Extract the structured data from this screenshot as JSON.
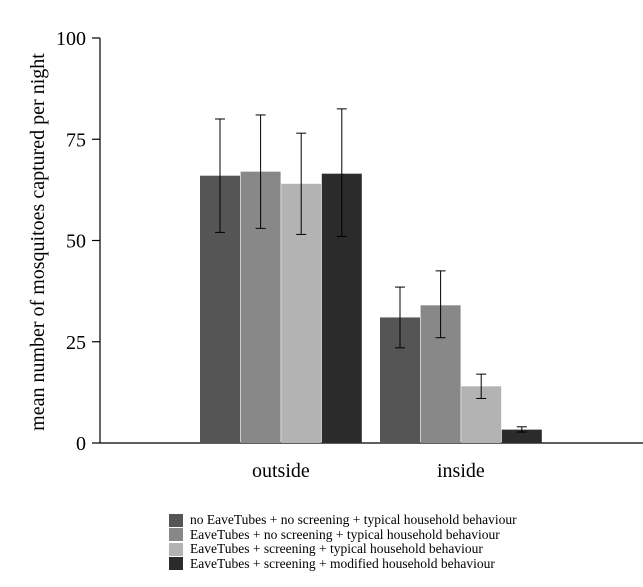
{
  "chart_data": {
    "type": "bar",
    "title": "",
    "xlabel": "",
    "ylabel": "mean number of mosquitoes captured per night",
    "ylim": [
      0,
      100
    ],
    "yticks": [
      "0",
      "25",
      "50",
      "75",
      "100"
    ],
    "categories": [
      "outside",
      "inside"
    ],
    "grid": false,
    "legend_position": "bottom",
    "series": [
      {
        "name": "no EaveTubes + no screening + typical household behaviour",
        "color": "#555555",
        "values": [
          66,
          31
        ],
        "err_low": [
          52,
          23.5
        ],
        "err_high": [
          80,
          38.5
        ]
      },
      {
        "name": "EaveTubes + no screening + typical household behaviour",
        "color": "#888888",
        "values": [
          67,
          34
        ],
        "err_low": [
          53,
          26
        ],
        "err_high": [
          81,
          42.5
        ]
      },
      {
        "name": "EaveTubes + screening + typical household behaviour",
        "color": "#b3b3b3",
        "values": [
          64,
          14
        ],
        "err_low": [
          51.5,
          11
        ],
        "err_high": [
          76.5,
          17
        ]
      },
      {
        "name": "EaveTubes + screening + modified household behaviour",
        "color": "#2b2b2b",
        "values": [
          66.5,
          3.3
        ],
        "err_low": [
          51,
          2.7
        ],
        "err_high": [
          82.5,
          4
        ]
      }
    ]
  }
}
